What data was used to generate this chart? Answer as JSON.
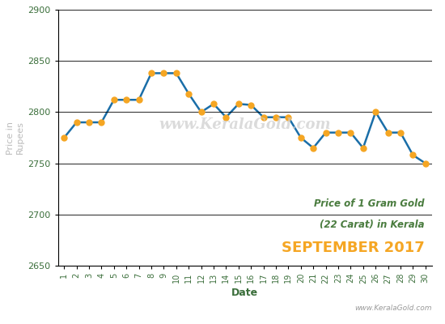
{
  "dates": [
    1,
    2,
    3,
    4,
    5,
    6,
    7,
    8,
    9,
    10,
    11,
    12,
    13,
    14,
    15,
    16,
    17,
    18,
    19,
    20,
    21,
    22,
    23,
    24,
    25,
    26,
    27,
    28,
    29,
    30
  ],
  "prices": [
    2775,
    2790,
    2790,
    2790,
    2812,
    2812,
    2812,
    2838,
    2838,
    2838,
    2818,
    2800,
    2808,
    2795,
    2808,
    2807,
    2795,
    2795,
    2795,
    2775,
    2765,
    2780,
    2780,
    2780,
    2765,
    2800,
    2780,
    2780,
    2758,
    2750
  ],
  "line_color": "#1a6ea8",
  "marker_color": "#f5a623",
  "marker_size": 5,
  "line_width": 1.8,
  "xlabel": "Date",
  "ylabel": "Price in\nRupees",
  "ylim": [
    2650,
    2900
  ],
  "yticks": [
    2650,
    2700,
    2750,
    2800,
    2850,
    2900
  ],
  "legend_line1": "Price of 1 Gram Gold",
  "legend_line2": "(22 Carat) in Kerala",
  "legend_line3": "SEPTEMBER 2017",
  "legend_color1": "#4a7c3f",
  "legend_color2": "#f5a623",
  "watermark": "www.KeralaGold.com",
  "watermark_color": "#cccccc",
  "website_bottom": "www.KeralaGold.com",
  "background_color": "#ffffff",
  "grid_color": "#000000",
  "tick_label_color": "#3a6e3a",
  "axis_label_color": "#3a6e3a",
  "ylabel_color": "#bbbbbb"
}
